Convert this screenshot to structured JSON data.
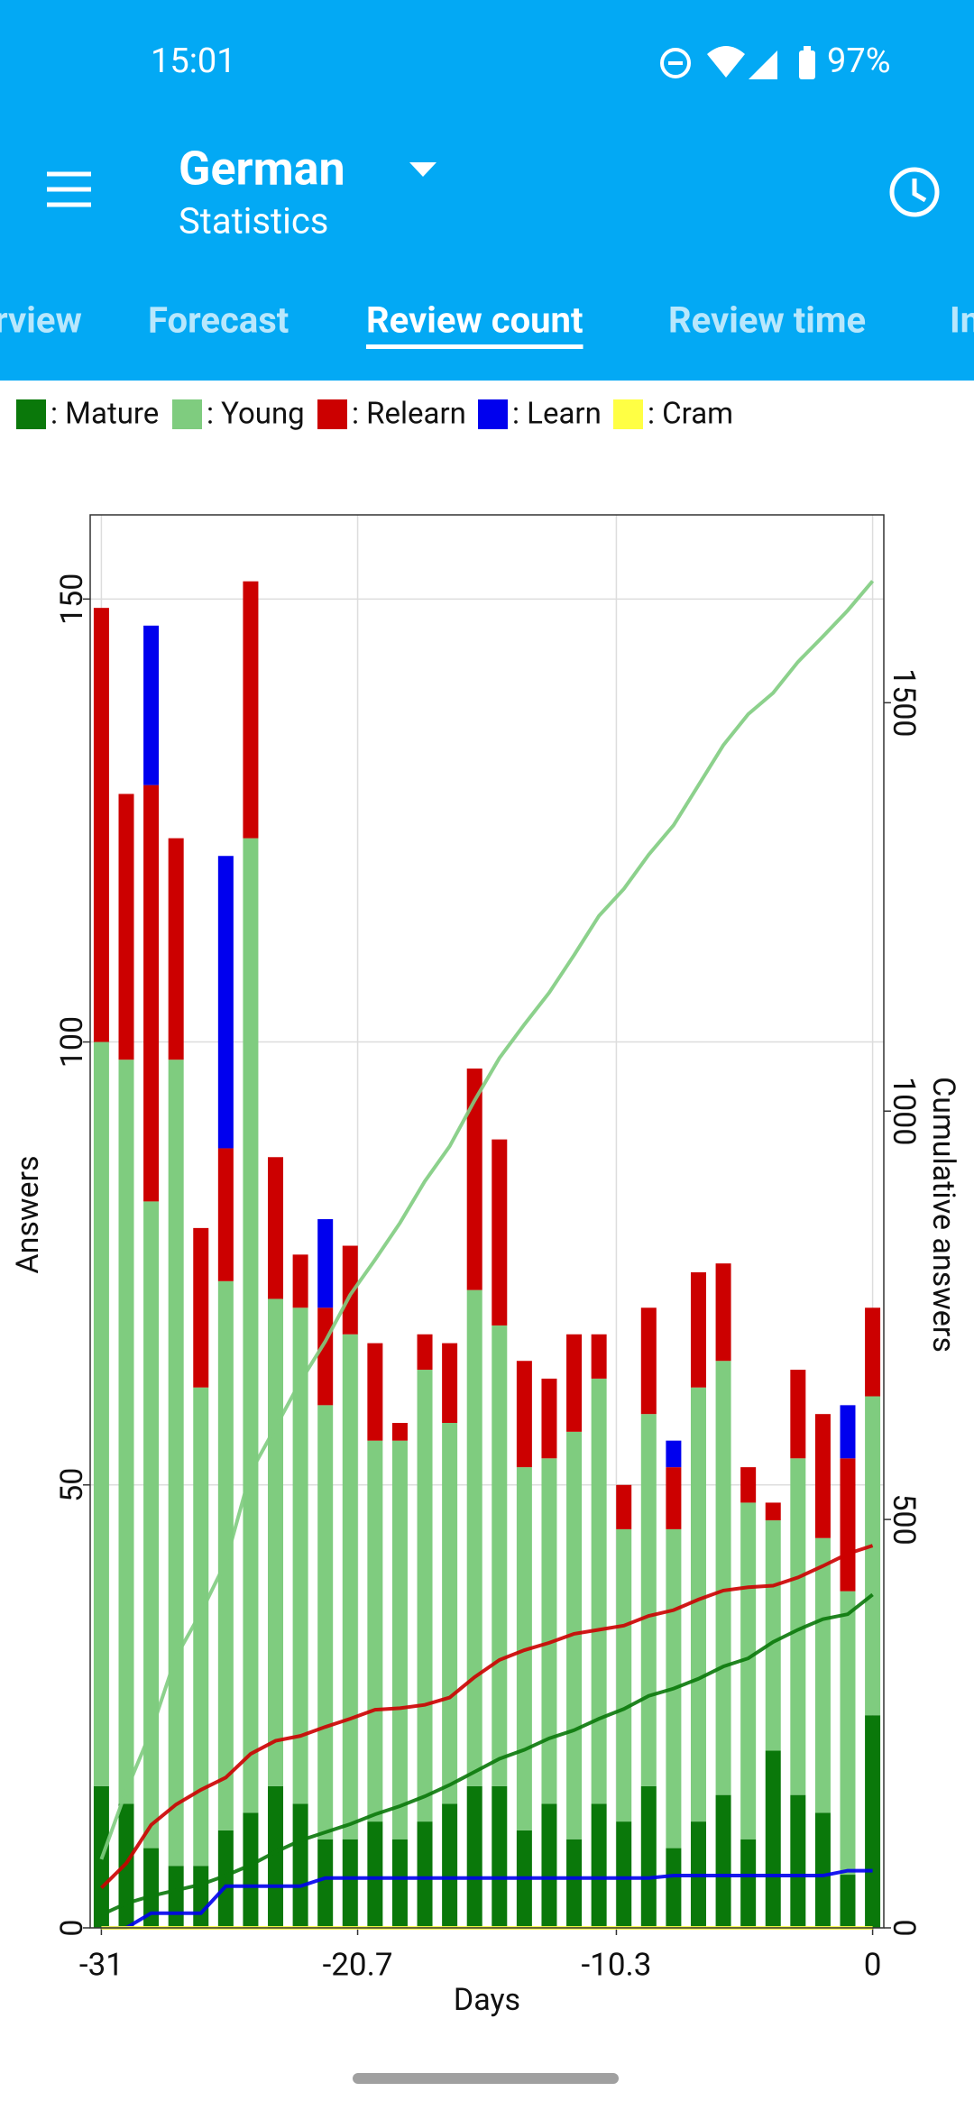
{
  "status_bar": {
    "time": "15:01",
    "battery": "97%"
  },
  "app_bar": {
    "title": "German",
    "subtitle": "Statistics"
  },
  "tabs": [
    "rview",
    "Forecast",
    "Review count",
    "Review time",
    "In"
  ],
  "active_tab": 2,
  "chart_data": {
    "type": "bar",
    "stacked": true,
    "cumulative_lines": true,
    "xlabel": "Days",
    "ylabel": "Answers",
    "y2label": "Cumulative answers",
    "legend": "top-left",
    "grid": true,
    "x": [
      -31,
      -30,
      -29,
      -28,
      -27,
      -26,
      -25,
      -24,
      -23,
      -22,
      -21,
      -20,
      -19,
      -18,
      -17,
      -16,
      -15,
      -14,
      -13,
      -12,
      -11,
      -10,
      -9,
      -8,
      -7,
      -6,
      -5,
      -4,
      -3,
      -2,
      -1,
      0
    ],
    "xlim": [
      -31.45,
      0.45
    ],
    "xticks": [
      -31,
      -20.7,
      -10.3,
      0
    ],
    "ylim": [
      0,
      159.5
    ],
    "yticks": [
      0,
      50,
      100,
      150
    ],
    "y2lim": [
      0,
      1730
    ],
    "y2ticks": [
      0,
      500,
      1000,
      1500
    ],
    "series": [
      {
        "name": ": Mature",
        "color": "#0a780a",
        "values": [
          16,
          14,
          9,
          7,
          7,
          11,
          13,
          16,
          14,
          10,
          10,
          12,
          10,
          12,
          14,
          16,
          16,
          11,
          14,
          10,
          14,
          12,
          16,
          9,
          12,
          15,
          10,
          20,
          15,
          13,
          6,
          24
        ]
      },
      {
        "name": ": Young",
        "color": "#7fcc7f",
        "values": [
          84,
          84,
          73,
          91,
          54,
          62,
          110,
          55,
          56,
          49,
          57,
          43,
          45,
          51,
          43,
          56,
          52,
          41,
          39,
          46,
          48,
          33,
          42,
          36,
          49,
          49,
          38,
          26,
          38,
          31,
          32,
          36
        ]
      },
      {
        "name": ": Relearn",
        "color": "#cc0000",
        "values": [
          49,
          30,
          47,
          25,
          18,
          15,
          29,
          16,
          6,
          11,
          10,
          11,
          2,
          4,
          9,
          25,
          21,
          12,
          9,
          11,
          5,
          5,
          12,
          7,
          13,
          11,
          4,
          2,
          10,
          14,
          15,
          10
        ]
      },
      {
        "name": ": Learn",
        "color": "#0000ee",
        "values": [
          0,
          0,
          18,
          0,
          0,
          33,
          0,
          0,
          0,
          10,
          0,
          0,
          0,
          0,
          0,
          0,
          0,
          0,
          0,
          0,
          0,
          0,
          0,
          3,
          0,
          0,
          0,
          0,
          0,
          0,
          6,
          0
        ]
      },
      {
        "name": ": Cram",
        "color": "#ffff44",
        "values": [
          0,
          0,
          0,
          0,
          0,
          0,
          0,
          0,
          0,
          0,
          0,
          0,
          0,
          0,
          0,
          0,
          0,
          0,
          0,
          0,
          0,
          0,
          0,
          0,
          0,
          0,
          0,
          0,
          0,
          0,
          0,
          0
        ]
      }
    ]
  }
}
